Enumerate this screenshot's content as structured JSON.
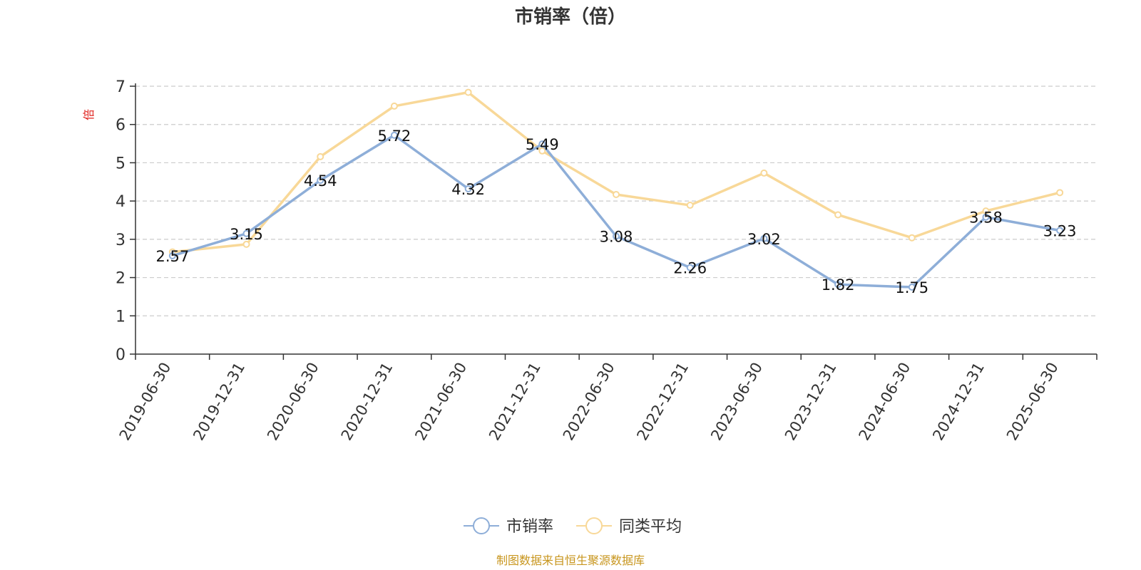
{
  "chart_data": {
    "type": "line",
    "title": "市销率（倍）",
    "y_unit": "倍",
    "ylim": [
      0,
      7
    ],
    "y_ticks": [
      0,
      1,
      2,
      3,
      4,
      5,
      6,
      7
    ],
    "grid": true,
    "legend_position": "bottom-center",
    "categories": [
      "2019-06-30",
      "2019-12-31",
      "2020-06-30",
      "2020-12-31",
      "2021-06-30",
      "2021-12-31",
      "2022-06-30",
      "2022-12-31",
      "2023-06-30",
      "2023-12-31",
      "2024-06-30",
      "2024-12-31",
      "2025-06-30"
    ],
    "series": [
      {
        "name": "市销率",
        "color": "#8eaed8",
        "values": [
          2.57,
          3.15,
          4.54,
          5.72,
          4.32,
          5.49,
          3.08,
          2.26,
          3.02,
          1.82,
          1.75,
          3.58,
          3.23
        ],
        "labels": [
          "2.57",
          "3.15",
          "4.54",
          "5.72",
          "4.32",
          "5.49",
          "3.08",
          "2.26",
          "3.02",
          "1.82",
          "1.75",
          "3.58",
          "3.23"
        ]
      },
      {
        "name": "同类平均",
        "color": "#f8d898",
        "values": [
          2.67,
          2.87,
          5.16,
          6.48,
          6.84,
          5.31,
          4.17,
          3.89,
          4.73,
          3.64,
          3.04,
          3.74,
          4.22
        ]
      }
    ],
    "source": "制图数据来自恒生聚源数据库"
  }
}
